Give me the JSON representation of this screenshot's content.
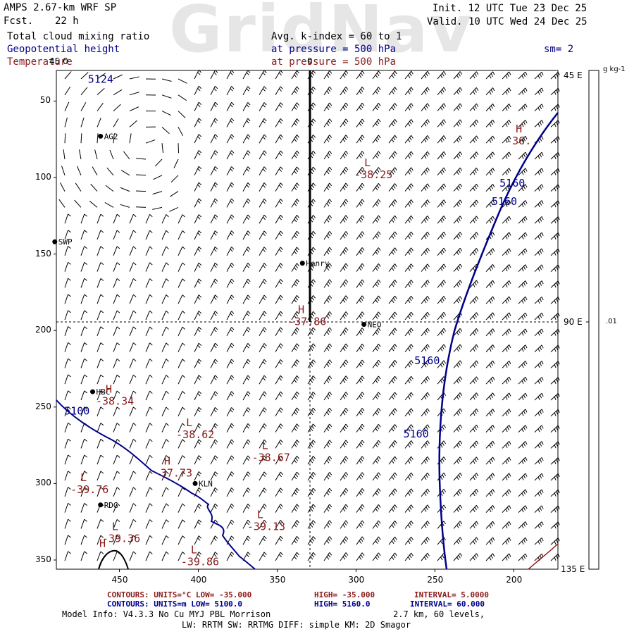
{
  "header": {
    "model": "AMPS 2.67-km WRF SP",
    "fcst_label": "Fcst.",
    "fcst_value": "22 h",
    "init": "Init. 12 UTC Tue 23 Dec 25",
    "valid": "Valid. 10 UTC Wed 24 Dec 25",
    "watermark": "GridNav",
    "field1": "Total cloud mixing ratio",
    "field2": "Geopotential height",
    "field3": "Temperature",
    "avg": "Avg. k-index =  60 to   1",
    "pressure1": "at pressure =  500 hPa",
    "pressure2": "at pressure =  500 hPa",
    "sm": "sm= 2"
  },
  "axes": {
    "y_ticks": [
      "50",
      "100",
      "150",
      "200",
      "250",
      "300",
      "350"
    ],
    "x_ticks": [
      "450",
      "400",
      "350",
      "300",
      "250",
      "200"
    ],
    "top_label": "0",
    "top_left_label": "45 0",
    "right_labels": [
      "45 E",
      "90 E",
      "135 E"
    ],
    "colorbar_unit": "g kg-1",
    "colorbar_value": ".01"
  },
  "stations": [
    {
      "name": "AG2",
      "x": 462,
      "y": 73
    },
    {
      "name": "SWP",
      "x": 491,
      "y": 142
    },
    {
      "name": "Henry",
      "x": 334,
      "y": 156
    },
    {
      "name": "NEO",
      "x": 295,
      "y": 196
    },
    {
      "name": "HBC",
      "x": 467,
      "y": 240
    },
    {
      "name": "KLN",
      "x": 402,
      "y": 300
    },
    {
      "name": "RDG",
      "x": 462,
      "y": 314
    }
  ],
  "height_labels": [
    {
      "text": "5124",
      "x": 470,
      "y": 38
    },
    {
      "text": "5160",
      "x": 209,
      "y": 106
    },
    {
      "text": "5160",
      "x": 214,
      "y": 118
    },
    {
      "text": "5160",
      "x": 263,
      "y": 222
    },
    {
      "text": "5160",
      "x": 270,
      "y": 270
    },
    {
      "text": "5100",
      "x": 485,
      "y": 255
    }
  ],
  "temp_labels": [
    {
      "hl": "L",
      "value": "-38.25",
      "x": 301,
      "y": 99
    },
    {
      "hl": "H",
      "value": "-36.",
      "x": 205,
      "y": 77
    },
    {
      "hl": "H",
      "value": "-37.86",
      "x": 343,
      "y": 195
    },
    {
      "hl": "H",
      "value": "-38.34",
      "x": 465,
      "y": 247
    },
    {
      "hl": "L",
      "value": "-38.62",
      "x": 414,
      "y": 269
    },
    {
      "hl": "L",
      "value": "-38.67",
      "x": 366,
      "y": 284
    },
    {
      "hl": "H",
      "value": "-37.73",
      "x": 428,
      "y": 294
    },
    {
      "hl": "L",
      "value": "-39.76",
      "x": 481,
      "y": 305
    },
    {
      "hl": "L",
      "value": "-39.13",
      "x": 369,
      "y": 329
    },
    {
      "hl": "L",
      "value": "-39.36",
      "x": 461,
      "y": 337
    },
    {
      "hl": "L",
      "value": "-39.86",
      "x": 411,
      "y": 352
    },
    {
      "hl": "H",
      "value": "",
      "x": 469,
      "y": 348
    }
  ],
  "footer": {
    "red_contours": "CONTOURS:  UNITS=°C  LOW= -35.000",
    "red_high": "HIGH= -35.000",
    "red_interval": "INTERVAL=   5.0000",
    "blue_contours": "CONTOURS:  UNITS=m  LOW=  5100.0",
    "blue_high": "HIGH=  5160.0",
    "blue_interval": "INTERVAL=   60.000",
    "model_info": "Model Info: V4.3.3    No Cu    MYJ PBL   Morrison",
    "model_info_right": "2.7 km,  60 levels,",
    "model_info2": "LW: RRTM SW: RRTMG    DIFF: simple KM: 2D Smagor"
  },
  "colors": {
    "height": "#00008b",
    "temperature": "#8b1a1a",
    "grid": "#000000"
  }
}
